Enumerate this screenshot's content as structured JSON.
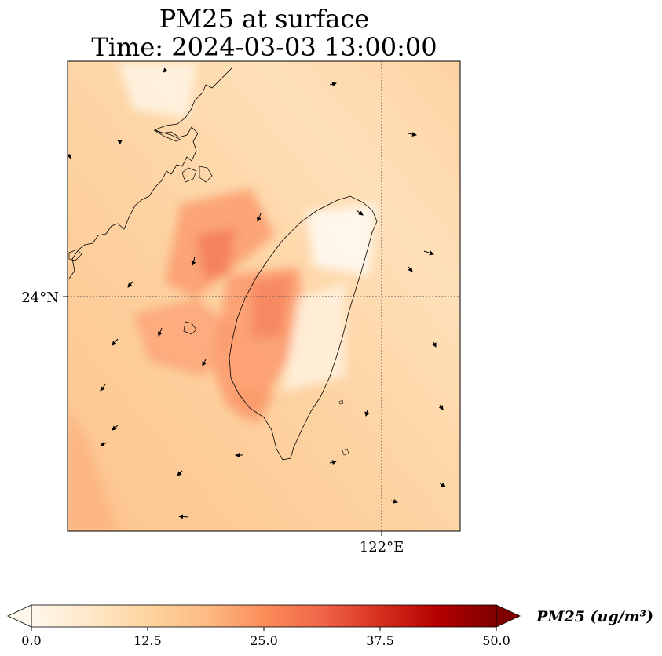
{
  "title": {
    "line1": "PM25 at surface",
    "line2": "Time: 2024-03-03 13:00:00"
  },
  "map": {
    "lat_label": "24°N",
    "lon_label": "122°E",
    "colormap": "OrRd"
  },
  "colorbar": {
    "label": "PM25 (ug/m³)",
    "ticks": [
      "0.0",
      "12.5",
      "25.0",
      "37.5",
      "50.0"
    ],
    "min": 0,
    "max": 50,
    "extend": "both",
    "colors": [
      "#fff7ec",
      "#fee8c8",
      "#fdd49e",
      "#fdbb84",
      "#fc8d59",
      "#ef6548",
      "#d7301f",
      "#b30000",
      "#7f0000"
    ]
  }
}
